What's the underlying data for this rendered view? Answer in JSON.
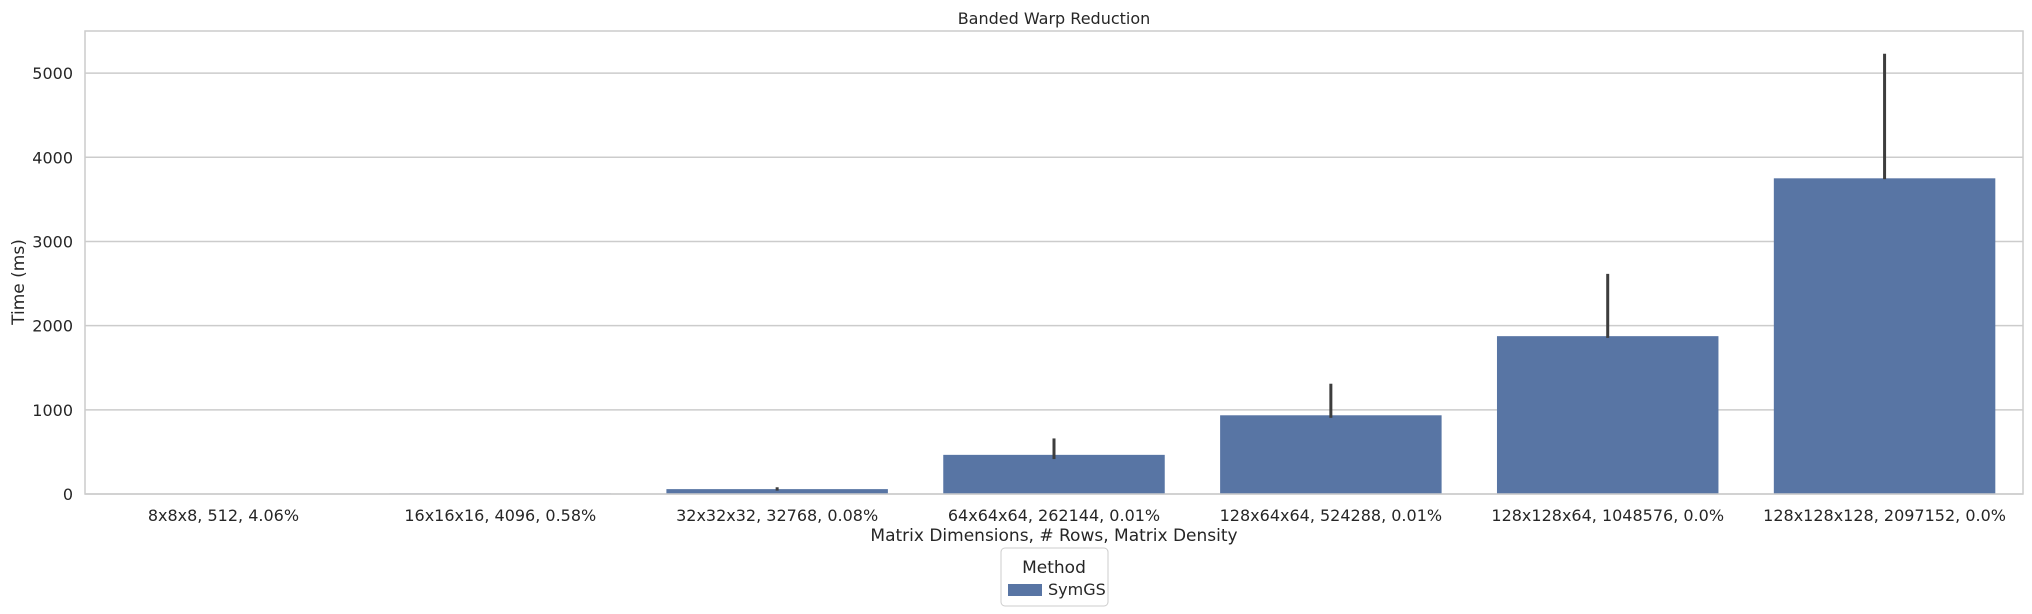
{
  "chart_data": {
    "type": "bar",
    "title": "Banded Warp Reduction",
    "xlabel": "Matrix Dimensions, # Rows, Matrix Density",
    "ylabel": "Time (ms)",
    "categories": [
      "8x8x8, 512, 4.06%",
      "16x16x16, 4096, 0.58%",
      "32x32x32, 32768, 0.08%",
      "64x64x64, 262144, 0.01%",
      "128x64x64, 524288, 0.01%",
      "128x128x64, 1048576, 0.0%",
      "128x128x128, 2097152, 0.0%"
    ],
    "series": [
      {
        "name": "SymGS",
        "color": "#5875a4",
        "values": [
          1,
          7,
          58,
          465,
          935,
          1875,
          3750
        ],
        "error_low": [
          1,
          7,
          40,
          415,
          905,
          1855,
          3740
        ],
        "error_high": [
          1,
          8,
          80,
          660,
          1310,
          2615,
          5230
        ]
      }
    ],
    "ylim": [
      0,
      5500
    ],
    "yticks": [
      0,
      1000,
      2000,
      3000,
      4000,
      5000
    ],
    "grid": "y",
    "legend": {
      "title": "Method",
      "placement": "bottom-center"
    }
  }
}
